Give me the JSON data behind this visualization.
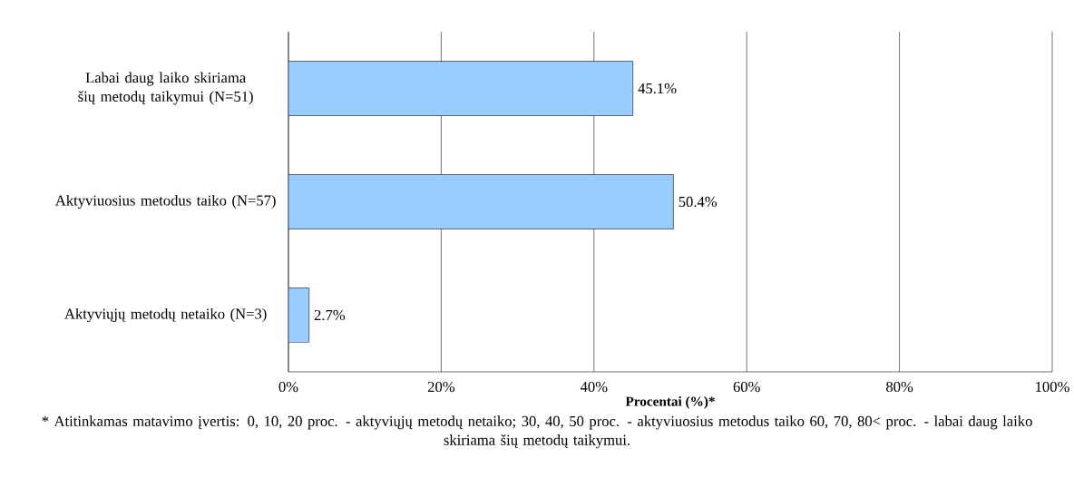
{
  "chart_data": {
    "type": "bar",
    "orientation": "horizontal",
    "categories": [
      "Labai daug laiko skiriama šių metodų taikymui (N=51)",
      "Aktyviuosius metodus taiko (N=57)",
      "Aktyviųjų metodų netaiko (N=3)"
    ],
    "values": [
      45.1,
      50.4,
      2.7
    ],
    "value_labels": [
      "45.1%",
      "50.4%",
      "2.7%"
    ],
    "color": "#99ccff",
    "xlim": [
      0,
      100
    ],
    "xticks": [
      {
        "value": 0,
        "label": "0%"
      },
      {
        "value": 20,
        "label": "20%"
      },
      {
        "value": 40,
        "label": "40%"
      },
      {
        "value": 60,
        "label": "60%"
      },
      {
        "value": 80,
        "label": "80%"
      },
      {
        "value": 100,
        "label": "100%"
      }
    ],
    "xlabel": "Procentai (%)*",
    "grid": "x",
    "annotations": [
      "* Atitinkamas matavimo įvertis: 0, 10, 20 proc. - aktyviųjų metodų netaiko; 30, 40, 50 proc. - aktyviuosius metodus taiko 60, 70, 80< proc. - labai daug laiko skiriama šių metodų taikymui."
    ]
  }
}
